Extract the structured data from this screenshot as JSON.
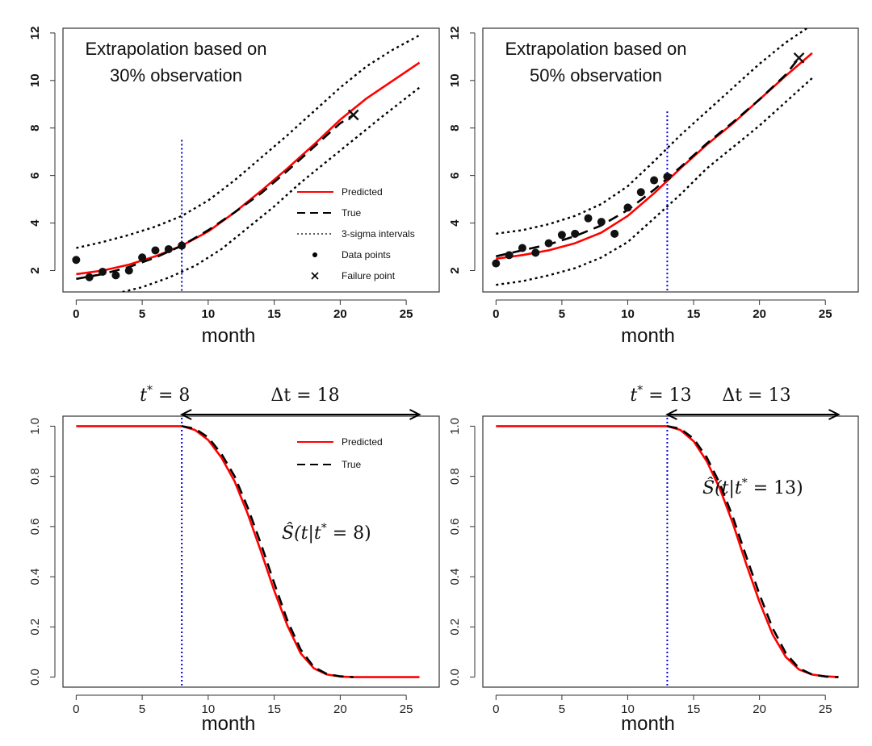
{
  "chart_data": [
    {
      "type": "line",
      "xlabel": "month",
      "annotation": [
        "Extrapolation based on",
        "30% observation"
      ],
      "xticks": [
        0,
        5,
        10,
        15,
        20,
        25
      ],
      "yticks": [
        2,
        4,
        6,
        8,
        10,
        12
      ],
      "xlim": [
        -1,
        27.5
      ],
      "ylim": [
        1.1,
        12.2
      ],
      "cutoff": 8,
      "legend": {
        "placement": "bottom-right",
        "entries": [
          "Predicted",
          "True",
          "3-sigma intervals",
          "Data points",
          "Failure point"
        ]
      },
      "series": [
        {
          "name": "Predicted",
          "color": "#ff0000",
          "style": "solid",
          "x": [
            0,
            2,
            4,
            6,
            8,
            10,
            12,
            14,
            16,
            18,
            20,
            22,
            24,
            26
          ],
          "y": [
            1.85,
            2.0,
            2.25,
            2.6,
            3.05,
            3.65,
            4.45,
            5.35,
            6.3,
            7.3,
            8.35,
            9.25,
            10.0,
            10.75
          ]
        },
        {
          "name": "True",
          "color": "#000000",
          "style": "dashed",
          "x": [
            0,
            2,
            4,
            6,
            8,
            10,
            12,
            14,
            16,
            18,
            20,
            21
          ],
          "y": [
            1.65,
            1.85,
            2.15,
            2.55,
            3.05,
            3.7,
            4.45,
            5.25,
            6.2,
            7.2,
            8.2,
            8.55
          ]
        },
        {
          "name": "3-sigma intervals",
          "color": "#000000",
          "style": "dotted",
          "x": [
            0,
            2,
            4,
            6,
            8,
            10,
            12,
            14,
            16,
            18,
            20,
            22,
            24,
            26
          ],
          "y": [
            2.95,
            3.2,
            3.5,
            3.85,
            4.3,
            4.95,
            5.8,
            6.75,
            7.7,
            8.7,
            9.7,
            10.6,
            11.3,
            11.9
          ]
        },
        {
          "name": "3-sigma intervals",
          "color": "#000000",
          "style": "dotted",
          "x": [
            3.5,
            5,
            7,
            9,
            11,
            13,
            15,
            17,
            19,
            21,
            23,
            26
          ],
          "y": [
            1.1,
            1.3,
            1.7,
            2.2,
            2.9,
            3.8,
            4.7,
            5.7,
            6.6,
            7.5,
            8.4,
            9.7
          ]
        }
      ],
      "points": {
        "x": [
          0,
          1,
          2,
          3,
          4,
          5,
          6,
          7,
          8
        ],
        "y": [
          2.45,
          1.72,
          1.95,
          1.8,
          2.0,
          2.55,
          2.85,
          2.9,
          3.05
        ]
      },
      "failure": {
        "x": 21,
        "y": 8.55
      }
    },
    {
      "type": "line",
      "xlabel": "month",
      "annotation": [
        "Extrapolation based on",
        "50% observation"
      ],
      "xticks": [
        0,
        5,
        10,
        15,
        20,
        25
      ],
      "yticks": [
        2,
        4,
        6,
        8,
        10,
        12
      ],
      "xlim": [
        -1,
        27.5
      ],
      "ylim": [
        1.1,
        12.2
      ],
      "cutoff": 13,
      "series": [
        {
          "name": "Predicted",
          "color": "#ff0000",
          "style": "solid",
          "x": [
            0,
            2,
            4,
            6,
            8,
            10,
            12,
            14,
            16,
            18,
            20,
            22,
            24
          ],
          "y": [
            2.5,
            2.65,
            2.85,
            3.15,
            3.6,
            4.3,
            5.25,
            6.3,
            7.3,
            8.2,
            9.2,
            10.2,
            11.15
          ]
        },
        {
          "name": "True",
          "color": "#000000",
          "style": "dashed",
          "x": [
            0,
            2,
            4,
            6,
            8,
            10,
            12,
            14,
            16,
            18,
            20,
            22,
            23
          ],
          "y": [
            2.6,
            2.85,
            3.1,
            3.45,
            3.9,
            4.55,
            5.4,
            6.35,
            7.35,
            8.25,
            9.2,
            10.25,
            10.95
          ]
        },
        {
          "name": "3-sigma intervals",
          "color": "#000000",
          "style": "dotted",
          "x": [
            0,
            2,
            4,
            6,
            8,
            10,
            12,
            14,
            16,
            18,
            20,
            22,
            24
          ],
          "y": [
            3.55,
            3.7,
            3.95,
            4.3,
            4.8,
            5.55,
            6.6,
            7.7,
            8.7,
            9.7,
            10.7,
            11.6,
            12.35
          ]
        },
        {
          "name": "3-sigma intervals",
          "color": "#000000",
          "style": "dotted",
          "x": [
            0,
            2,
            4,
            6,
            8,
            10,
            12,
            14,
            16,
            18,
            20,
            22,
            24
          ],
          "y": [
            1.4,
            1.55,
            1.8,
            2.1,
            2.55,
            3.2,
            4.2,
            5.2,
            6.3,
            7.2,
            8.1,
            9.1,
            10.1
          ]
        }
      ],
      "points": {
        "x": [
          0,
          1,
          2,
          3,
          4,
          5,
          6,
          7,
          8,
          9,
          10,
          11,
          12,
          13
        ],
        "y": [
          2.3,
          2.65,
          2.95,
          2.75,
          3.15,
          3.5,
          3.55,
          4.2,
          4.05,
          3.55,
          4.65,
          5.3,
          5.8,
          5.95
        ]
      },
      "failure": {
        "x": 23,
        "y": 10.95
      }
    },
    {
      "type": "line",
      "xlabel": "month",
      "xticks": [
        0,
        5,
        10,
        15,
        20,
        25
      ],
      "yticks": [
        "0.0",
        "0.2",
        "0.4",
        "0.6",
        "0.8",
        "1.0"
      ],
      "xlim": [
        -1,
        27.5
      ],
      "ylim": [
        -0.04,
        1.04
      ],
      "cutoff": 8,
      "arrow": {
        "from": 8,
        "to": 26
      },
      "t_star_label": {
        "var": "t",
        "sup": "*",
        "rest": " = 8"
      },
      "delta_label": "Δt = 18",
      "curve_label": {
        "hat": "Ŝ",
        "body": "(t|t",
        "sup": "*",
        "tail": " = 8)"
      },
      "legend": {
        "placement": "top-right",
        "entries": [
          "Predicted",
          "True"
        ]
      },
      "series": [
        {
          "name": "Predicted",
          "color": "#ff0000",
          "style": "solid",
          "x": [
            0,
            8,
            9,
            10,
            11,
            12,
            13,
            14,
            15,
            16,
            17,
            18,
            19,
            20,
            21,
            26
          ],
          "y": [
            1.0,
            1.0,
            0.985,
            0.945,
            0.875,
            0.78,
            0.65,
            0.5,
            0.345,
            0.205,
            0.095,
            0.035,
            0.01,
            0.002,
            0.0,
            0.0
          ]
        },
        {
          "name": "True",
          "color": "#000000",
          "style": "dashed",
          "x": [
            8,
            9,
            10,
            11,
            12,
            13,
            14,
            15,
            16,
            17,
            18,
            19,
            20,
            21
          ],
          "y": [
            1.0,
            0.99,
            0.955,
            0.89,
            0.8,
            0.675,
            0.53,
            0.375,
            0.225,
            0.11,
            0.04,
            0.012,
            0.003,
            0.0
          ]
        }
      ]
    },
    {
      "type": "line",
      "xlabel": "month",
      "xticks": [
        0,
        5,
        10,
        15,
        20,
        25
      ],
      "yticks": [
        "0.0",
        "0.2",
        "0.4",
        "0.6",
        "0.8",
        "1.0"
      ],
      "xlim": [
        -1,
        27.5
      ],
      "ylim": [
        -0.04,
        1.04
      ],
      "cutoff": 13,
      "arrow": {
        "from": 13,
        "to": 26
      },
      "t_star_label": {
        "var": "t",
        "sup": "*",
        "rest": " = 13"
      },
      "delta_label": "Δt = 13",
      "curve_label": {
        "hat": "Ŝ",
        "body": "(t|t",
        "sup": "*",
        "tail": " = 13)"
      },
      "series": [
        {
          "name": "Predicted",
          "color": "#ff0000",
          "style": "solid",
          "x": [
            0,
            13,
            14,
            15,
            16,
            17,
            18,
            19,
            20,
            21,
            22,
            23,
            24,
            25,
            26
          ],
          "y": [
            1.0,
            1.0,
            0.985,
            0.94,
            0.86,
            0.75,
            0.61,
            0.45,
            0.3,
            0.17,
            0.08,
            0.03,
            0.01,
            0.003,
            0.0
          ]
        },
        {
          "name": "True",
          "color": "#000000",
          "style": "dashed",
          "x": [
            13,
            14,
            15,
            16,
            17,
            18,
            19,
            20,
            21,
            22,
            23,
            24,
            25,
            26
          ],
          "y": [
            1.0,
            0.99,
            0.95,
            0.875,
            0.77,
            0.635,
            0.48,
            0.33,
            0.195,
            0.095,
            0.035,
            0.01,
            0.002,
            0.0
          ]
        }
      ]
    }
  ]
}
